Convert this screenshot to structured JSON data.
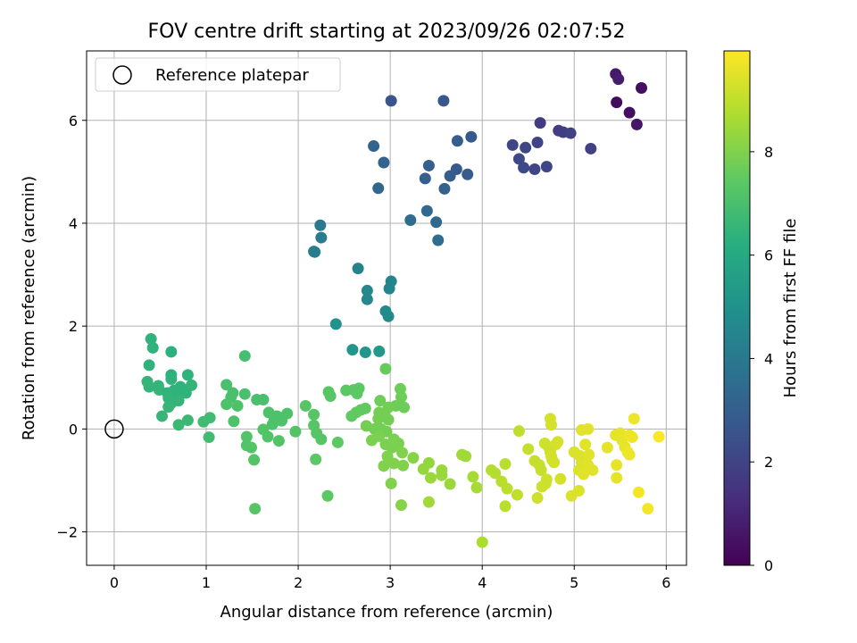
{
  "chart_data": {
    "type": "scatter",
    "title": "FOV centre drift starting at 2023/09/26 02:07:52",
    "xlabel": "Angular distance from reference (arcmin)",
    "ylabel": "Rotation from reference (arcmin)",
    "xlim": [
      -0.3,
      6.22
    ],
    "ylim": [
      -2.65,
      7.35
    ],
    "xticks": [
      "0",
      "1",
      "2",
      "3",
      "4",
      "5",
      "6"
    ],
    "yticks": [
      "−2",
      "0",
      "2",
      "4",
      "6"
    ],
    "grid": true,
    "legend": {
      "placement": "top-left",
      "entries": [
        "Reference platepar"
      ]
    },
    "reference_point": {
      "x": 0,
      "y": 0
    },
    "colorbar": {
      "label": "Hours from first FF file",
      "colormap": "viridis",
      "range": [
        0,
        9.95
      ],
      "ticks": [
        "0",
        "2",
        "4",
        "6",
        "8"
      ]
    },
    "points": [
      {
        "x": 5.45,
        "y": 6.9,
        "h": 0.7
      },
      {
        "x": 5.48,
        "y": 6.8,
        "h": 0.8
      },
      {
        "x": 5.73,
        "y": 6.63,
        "h": 0.4
      },
      {
        "x": 5.46,
        "y": 6.35,
        "h": 0.3
      },
      {
        "x": 5.6,
        "y": 6.15,
        "h": 0.4
      },
      {
        "x": 5.68,
        "y": 5.92,
        "h": 0.6
      },
      {
        "x": 4.63,
        "y": 5.95,
        "h": 1.7
      },
      {
        "x": 4.83,
        "y": 5.8,
        "h": 1.8
      },
      {
        "x": 4.88,
        "y": 5.77,
        "h": 1.8
      },
      {
        "x": 4.96,
        "y": 5.75,
        "h": 1.9
      },
      {
        "x": 4.6,
        "y": 5.57,
        "h": 2.0
      },
      {
        "x": 4.33,
        "y": 5.52,
        "h": 2.1
      },
      {
        "x": 4.47,
        "y": 5.47,
        "h": 2.1
      },
      {
        "x": 5.18,
        "y": 5.45,
        "h": 1.9
      },
      {
        "x": 4.4,
        "y": 5.25,
        "h": 2.2
      },
      {
        "x": 4.45,
        "y": 5.08,
        "h": 2.2
      },
      {
        "x": 4.57,
        "y": 5.05,
        "h": 2.1
      },
      {
        "x": 4.7,
        "y": 5.1,
        "h": 2.1
      },
      {
        "x": 3.01,
        "y": 6.38,
        "h": 2.6
      },
      {
        "x": 3.58,
        "y": 6.38,
        "h": 2.7
      },
      {
        "x": 3.88,
        "y": 5.68,
        "h": 2.8
      },
      {
        "x": 3.73,
        "y": 5.6,
        "h": 2.9
      },
      {
        "x": 2.82,
        "y": 5.5,
        "h": 3.2
      },
      {
        "x": 2.93,
        "y": 5.18,
        "h": 3.2
      },
      {
        "x": 3.42,
        "y": 5.12,
        "h": 3.0
      },
      {
        "x": 3.72,
        "y": 5.05,
        "h": 2.8
      },
      {
        "x": 3.65,
        "y": 4.92,
        "h": 2.9
      },
      {
        "x": 3.84,
        "y": 4.95,
        "h": 2.9
      },
      {
        "x": 3.38,
        "y": 4.87,
        "h": 3.0
      },
      {
        "x": 3.59,
        "y": 4.67,
        "h": 3.1
      },
      {
        "x": 2.87,
        "y": 4.68,
        "h": 3.3
      },
      {
        "x": 3.4,
        "y": 4.24,
        "h": 3.4
      },
      {
        "x": 3.22,
        "y": 4.06,
        "h": 3.5
      },
      {
        "x": 3.5,
        "y": 4.02,
        "h": 3.4
      },
      {
        "x": 3.52,
        "y": 3.67,
        "h": 3.5
      },
      {
        "x": 2.24,
        "y": 3.96,
        "h": 4.0
      },
      {
        "x": 2.25,
        "y": 3.72,
        "h": 4.1
      },
      {
        "x": 2.17,
        "y": 3.45,
        "h": 4.2
      },
      {
        "x": 2.18,
        "y": 3.44,
        "h": 4.2
      },
      {
        "x": 2.65,
        "y": 3.12,
        "h": 4.4
      },
      {
        "x": 3.01,
        "y": 2.87,
        "h": 4.5
      },
      {
        "x": 2.75,
        "y": 2.69,
        "h": 4.6
      },
      {
        "x": 2.99,
        "y": 2.73,
        "h": 4.5
      },
      {
        "x": 2.75,
        "y": 2.52,
        "h": 4.6
      },
      {
        "x": 2.95,
        "y": 2.29,
        "h": 4.7
      },
      {
        "x": 2.98,
        "y": 2.19,
        "h": 4.7
      },
      {
        "x": 2.41,
        "y": 2.04,
        "h": 5.0
      },
      {
        "x": 2.59,
        "y": 1.54,
        "h": 5.2
      },
      {
        "x": 2.73,
        "y": 1.49,
        "h": 5.2
      },
      {
        "x": 2.88,
        "y": 1.51,
        "h": 5.3
      },
      {
        "x": 0.4,
        "y": 1.75,
        "h": 6.4
      },
      {
        "x": 0.42,
        "y": 1.58,
        "h": 6.4
      },
      {
        "x": 0.62,
        "y": 1.5,
        "h": 6.3
      },
      {
        "x": 0.38,
        "y": 1.24,
        "h": 6.4
      },
      {
        "x": 0.62,
        "y": 1.05,
        "h": 6.3
      },
      {
        "x": 0.8,
        "y": 1.05,
        "h": 6.4
      },
      {
        "x": 0.62,
        "y": 0.97,
        "h": 6.4
      },
      {
        "x": 0.36,
        "y": 0.92,
        "h": 6.5
      },
      {
        "x": 0.48,
        "y": 0.84,
        "h": 6.5
      },
      {
        "x": 0.84,
        "y": 0.85,
        "h": 6.5
      },
      {
        "x": 0.38,
        "y": 0.82,
        "h": 6.5
      },
      {
        "x": 0.49,
        "y": 0.76,
        "h": 6.5
      },
      {
        "x": 0.65,
        "y": 0.75,
        "h": 6.4
      },
      {
        "x": 0.72,
        "y": 0.82,
        "h": 6.4
      },
      {
        "x": 0.58,
        "y": 0.7,
        "h": 6.4
      },
      {
        "x": 0.67,
        "y": 0.65,
        "h": 6.4
      },
      {
        "x": 0.78,
        "y": 0.7,
        "h": 6.4
      },
      {
        "x": 0.59,
        "y": 0.6,
        "h": 6.5
      },
      {
        "x": 0.7,
        "y": 0.55,
        "h": 6.5
      },
      {
        "x": 0.62,
        "y": 0.5,
        "h": 6.5
      },
      {
        "x": 0.59,
        "y": 0.43,
        "h": 6.6
      },
      {
        "x": 0.52,
        "y": 0.25,
        "h": 6.6
      },
      {
        "x": 0.8,
        "y": 0.17,
        "h": 6.7
      },
      {
        "x": 0.7,
        "y": 0.08,
        "h": 6.7
      },
      {
        "x": 0.97,
        "y": 0.14,
        "h": 6.8
      },
      {
        "x": 1.04,
        "y": 0.22,
        "h": 6.8
      },
      {
        "x": 1.03,
        "y": -0.16,
        "h": 6.8
      },
      {
        "x": 1.42,
        "y": 1.42,
        "h": 6.9
      },
      {
        "x": 1.22,
        "y": 0.86,
        "h": 7.0
      },
      {
        "x": 1.29,
        "y": 0.7,
        "h": 7.0
      },
      {
        "x": 1.42,
        "y": 0.68,
        "h": 7.0
      },
      {
        "x": 1.27,
        "y": 0.62,
        "h": 7.0
      },
      {
        "x": 1.55,
        "y": 0.57,
        "h": 7.0
      },
      {
        "x": 1.62,
        "y": 0.57,
        "h": 7.0
      },
      {
        "x": 1.22,
        "y": 0.48,
        "h": 7.1
      },
      {
        "x": 1.34,
        "y": 0.45,
        "h": 7.1
      },
      {
        "x": 1.68,
        "y": 0.32,
        "h": 7.1
      },
      {
        "x": 1.88,
        "y": 0.3,
        "h": 7.1
      },
      {
        "x": 1.77,
        "y": 0.25,
        "h": 7.1
      },
      {
        "x": 1.74,
        "y": 0.18,
        "h": 7.1
      },
      {
        "x": 1.82,
        "y": 0.16,
        "h": 7.1
      },
      {
        "x": 1.3,
        "y": 0.15,
        "h": 7.1
      },
      {
        "x": 1.72,
        "y": 0.09,
        "h": 7.1
      },
      {
        "x": 1.62,
        "y": -0.01,
        "h": 7.2
      },
      {
        "x": 1.97,
        "y": -0.05,
        "h": 7.2
      },
      {
        "x": 1.44,
        "y": -0.15,
        "h": 7.2
      },
      {
        "x": 1.67,
        "y": -0.15,
        "h": 7.2
      },
      {
        "x": 1.79,
        "y": -0.23,
        "h": 7.2
      },
      {
        "x": 1.44,
        "y": -0.32,
        "h": 7.2
      },
      {
        "x": 1.49,
        "y": -0.36,
        "h": 7.2
      },
      {
        "x": 1.52,
        "y": -0.6,
        "h": 7.2
      },
      {
        "x": 1.53,
        "y": -1.55,
        "h": 7.3
      },
      {
        "x": 2.33,
        "y": 0.72,
        "h": 7.3
      },
      {
        "x": 2.35,
        "y": 0.64,
        "h": 7.3
      },
      {
        "x": 2.6,
        "y": 0.76,
        "h": 7.4
      },
      {
        "x": 2.52,
        "y": 0.75,
        "h": 7.4
      },
      {
        "x": 2.66,
        "y": 0.79,
        "h": 7.4
      },
      {
        "x": 2.64,
        "y": 0.69,
        "h": 7.4
      },
      {
        "x": 2.08,
        "y": 0.45,
        "h": 7.3
      },
      {
        "x": 2.17,
        "y": 0.28,
        "h": 7.3
      },
      {
        "x": 2.17,
        "y": 0.07,
        "h": 7.3
      },
      {
        "x": 2.2,
        "y": -0.08,
        "h": 7.3
      },
      {
        "x": 2.25,
        "y": -0.2,
        "h": 7.3
      },
      {
        "x": 2.43,
        "y": -0.26,
        "h": 7.4
      },
      {
        "x": 2.19,
        "y": -0.59,
        "h": 7.4
      },
      {
        "x": 2.32,
        "y": -1.3,
        "h": 7.4
      },
      {
        "x": 2.68,
        "y": 0.37,
        "h": 7.5
      },
      {
        "x": 2.73,
        "y": 0.4,
        "h": 7.5
      },
      {
        "x": 2.58,
        "y": 0.25,
        "h": 7.5
      },
      {
        "x": 2.63,
        "y": 0.32,
        "h": 7.5
      },
      {
        "x": 2.95,
        "y": 1.17,
        "h": 7.6
      },
      {
        "x": 3.11,
        "y": 0.78,
        "h": 7.7
      },
      {
        "x": 2.89,
        "y": 0.55,
        "h": 7.7
      },
      {
        "x": 3.12,
        "y": 0.62,
        "h": 7.7
      },
      {
        "x": 3.06,
        "y": 0.45,
        "h": 7.7
      },
      {
        "x": 3.15,
        "y": 0.42,
        "h": 7.7
      },
      {
        "x": 2.98,
        "y": 0.42,
        "h": 7.8
      },
      {
        "x": 2.88,
        "y": 0.32,
        "h": 7.8
      },
      {
        "x": 2.94,
        "y": 0.25,
        "h": 7.8
      },
      {
        "x": 2.87,
        "y": 0.2,
        "h": 7.8
      },
      {
        "x": 2.98,
        "y": 0.18,
        "h": 7.8
      },
      {
        "x": 2.74,
        "y": 0.06,
        "h": 7.8
      },
      {
        "x": 2.83,
        "y": 0.0,
        "h": 7.8
      },
      {
        "x": 2.9,
        "y": 0.0,
        "h": 7.8
      },
      {
        "x": 2.96,
        "y": -0.05,
        "h": 7.8
      },
      {
        "x": 2.88,
        "y": -0.14,
        "h": 7.9
      },
      {
        "x": 2.8,
        "y": -0.22,
        "h": 7.9
      },
      {
        "x": 2.95,
        "y": -0.3,
        "h": 7.9
      },
      {
        "x": 3.04,
        "y": -0.2,
        "h": 7.9
      },
      {
        "x": 3.09,
        "y": -0.28,
        "h": 7.9
      },
      {
        "x": 3.02,
        "y": -0.36,
        "h": 7.9
      },
      {
        "x": 2.97,
        "y": -0.53,
        "h": 8.0
      },
      {
        "x": 3.13,
        "y": -0.46,
        "h": 8.0
      },
      {
        "x": 3.04,
        "y": -0.67,
        "h": 8.0
      },
      {
        "x": 2.93,
        "y": -0.72,
        "h": 8.0
      },
      {
        "x": 3.14,
        "y": -0.71,
        "h": 8.0
      },
      {
        "x": 3.01,
        "y": -1.06,
        "h": 8.0
      },
      {
        "x": 3.12,
        "y": -1.48,
        "h": 8.1
      },
      {
        "x": 3.25,
        "y": -0.56,
        "h": 8.1
      },
      {
        "x": 3.36,
        "y": -0.78,
        "h": 8.3
      },
      {
        "x": 3.42,
        "y": -0.66,
        "h": 8.3
      },
      {
        "x": 3.44,
        "y": -0.95,
        "h": 8.4
      },
      {
        "x": 3.56,
        "y": -0.8,
        "h": 8.4
      },
      {
        "x": 3.56,
        "y": -0.9,
        "h": 8.4
      },
      {
        "x": 3.65,
        "y": -1.07,
        "h": 8.4
      },
      {
        "x": 3.42,
        "y": -1.42,
        "h": 8.5
      },
      {
        "x": 3.78,
        "y": -0.5,
        "h": 8.5
      },
      {
        "x": 3.82,
        "y": -0.53,
        "h": 8.5
      },
      {
        "x": 3.9,
        "y": -0.93,
        "h": 8.6
      },
      {
        "x": 3.94,
        "y": -1.14,
        "h": 8.6
      },
      {
        "x": 4.0,
        "y": -2.2,
        "h": 8.7
      },
      {
        "x": 4.1,
        "y": -0.8,
        "h": 8.8
      },
      {
        "x": 4.14,
        "y": -0.86,
        "h": 8.8
      },
      {
        "x": 4.25,
        "y": -0.68,
        "h": 8.9
      },
      {
        "x": 4.21,
        "y": -1.02,
        "h": 8.9
      },
      {
        "x": 4.27,
        "y": -1.16,
        "h": 8.9
      },
      {
        "x": 4.25,
        "y": -1.5,
        "h": 8.9
      },
      {
        "x": 4.38,
        "y": -1.28,
        "h": 9.0
      },
      {
        "x": 4.4,
        "y": -0.04,
        "h": 9.0
      },
      {
        "x": 4.5,
        "y": -0.39,
        "h": 9.1
      },
      {
        "x": 4.57,
        "y": -0.62,
        "h": 9.1
      },
      {
        "x": 4.62,
        "y": -0.7,
        "h": 9.1
      },
      {
        "x": 4.64,
        "y": -0.8,
        "h": 9.1
      },
      {
        "x": 4.6,
        "y": -1.34,
        "h": 9.2
      },
      {
        "x": 4.65,
        "y": -1.12,
        "h": 9.2
      },
      {
        "x": 4.69,
        "y": -1.06,
        "h": 9.2
      },
      {
        "x": 4.7,
        "y": -0.98,
        "h": 9.2
      },
      {
        "x": 4.68,
        "y": -0.28,
        "h": 9.2
      },
      {
        "x": 4.72,
        "y": -0.35,
        "h": 9.2
      },
      {
        "x": 4.74,
        "y": -0.45,
        "h": 9.2
      },
      {
        "x": 4.75,
        "y": -0.53,
        "h": 9.3
      },
      {
        "x": 4.76,
        "y": -0.6,
        "h": 9.3
      },
      {
        "x": 4.78,
        "y": -0.65,
        "h": 9.3
      },
      {
        "x": 4.8,
        "y": -0.3,
        "h": 9.3
      },
      {
        "x": 4.74,
        "y": 0.2,
        "h": 9.3
      },
      {
        "x": 4.75,
        "y": 0.08,
        "h": 9.3
      },
      {
        "x": 4.82,
        "y": -0.25,
        "h": 9.3
      },
      {
        "x": 4.85,
        "y": -0.97,
        "h": 9.3
      },
      {
        "x": 4.97,
        "y": -1.3,
        "h": 9.4
      },
      {
        "x": 5.05,
        "y": -1.2,
        "h": 9.4
      },
      {
        "x": 5.0,
        "y": -0.45,
        "h": 9.4
      },
      {
        "x": 5.06,
        "y": -0.52,
        "h": 9.4
      },
      {
        "x": 5.08,
        "y": -0.65,
        "h": 9.4
      },
      {
        "x": 5.05,
        "y": -0.8,
        "h": 9.4
      },
      {
        "x": 5.1,
        "y": -0.88,
        "h": 9.5
      },
      {
        "x": 5.12,
        "y": -0.3,
        "h": 9.5
      },
      {
        "x": 5.16,
        "y": -0.5,
        "h": 9.5
      },
      {
        "x": 5.15,
        "y": -0.7,
        "h": 9.5
      },
      {
        "x": 5.2,
        "y": -0.8,
        "h": 9.5
      },
      {
        "x": 5.08,
        "y": -0.02,
        "h": 9.5
      },
      {
        "x": 5.15,
        "y": 0.0,
        "h": 9.5
      },
      {
        "x": 5.36,
        "y": -0.36,
        "h": 9.6
      },
      {
        "x": 5.45,
        "y": -0.12,
        "h": 9.6
      },
      {
        "x": 5.5,
        "y": -0.08,
        "h": 9.6
      },
      {
        "x": 5.52,
        "y": -0.22,
        "h": 9.6
      },
      {
        "x": 5.55,
        "y": -0.35,
        "h": 9.6
      },
      {
        "x": 5.46,
        "y": -0.7,
        "h": 9.6
      },
      {
        "x": 5.46,
        "y": -0.95,
        "h": 9.6
      },
      {
        "x": 5.58,
        "y": -0.45,
        "h": 9.7
      },
      {
        "x": 5.6,
        "y": -0.5,
        "h": 9.7
      },
      {
        "x": 5.6,
        "y": -0.12,
        "h": 9.7
      },
      {
        "x": 5.63,
        "y": -0.16,
        "h": 9.7
      },
      {
        "x": 5.65,
        "y": 0.2,
        "h": 9.7
      },
      {
        "x": 5.7,
        "y": -1.23,
        "h": 9.8
      },
      {
        "x": 5.8,
        "y": -1.55,
        "h": 9.8
      },
      {
        "x": 5.92,
        "y": -0.15,
        "h": 9.9
      }
    ]
  }
}
